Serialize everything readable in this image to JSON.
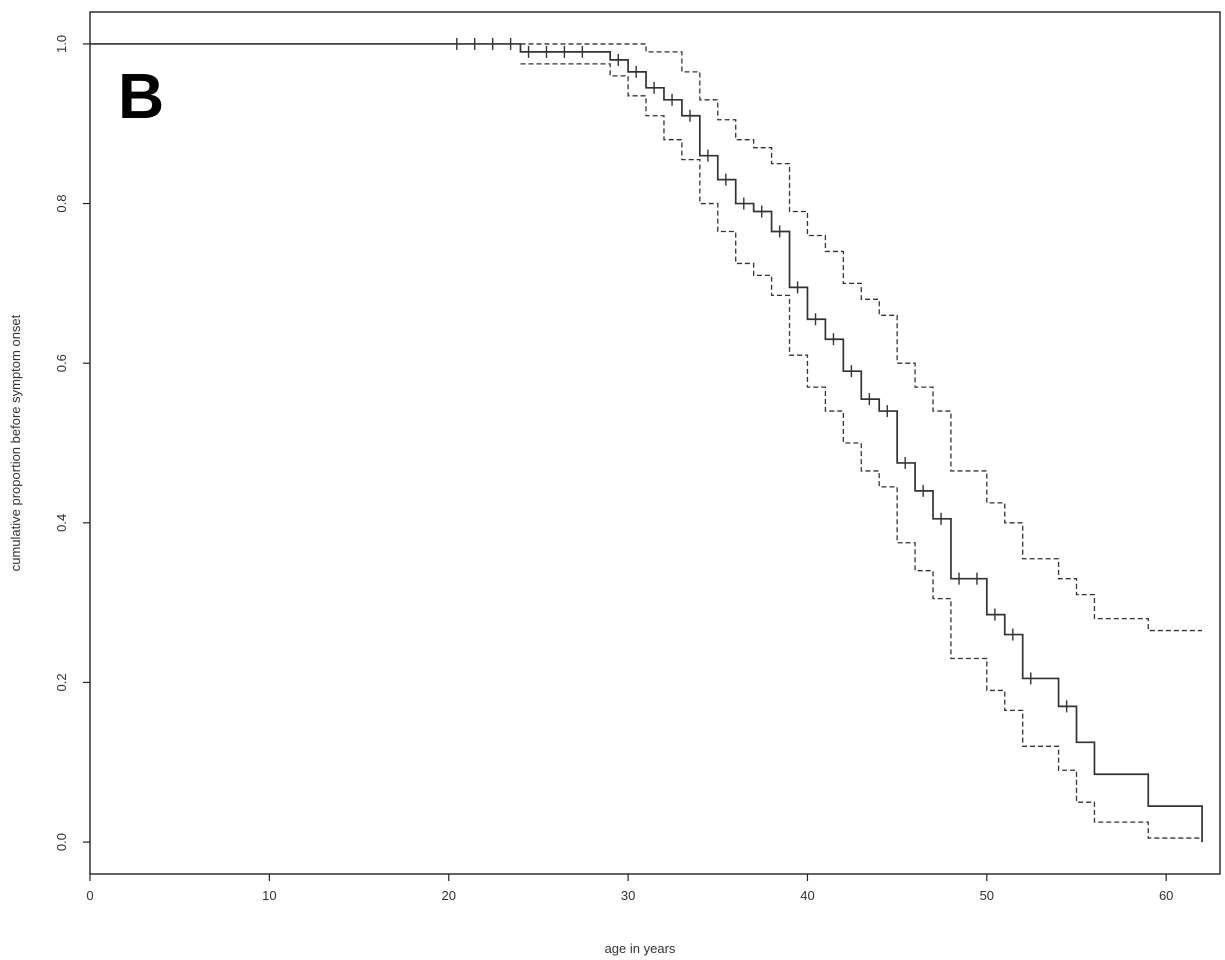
{
  "chart_data": {
    "type": "line",
    "title": "",
    "panel_label": "B",
    "xlabel": "age in years",
    "ylabel": "cumulative proportion before symptom onset",
    "xlim": [
      0,
      63
    ],
    "ylim": [
      -0.04,
      1.04
    ],
    "xticks": [
      0,
      10,
      20,
      30,
      40,
      50,
      60
    ],
    "yticks": [
      0.0,
      0.2,
      0.4,
      0.6,
      0.8,
      1.0
    ],
    "xtick_labels": [
      "0",
      "10",
      "20",
      "30",
      "40",
      "50",
      "60"
    ],
    "ytick_labels": [
      "0.0",
      "0.2",
      "0.4",
      "0.6",
      "0.8",
      "1.0"
    ],
    "grid": false,
    "series": [
      {
        "style": "solid",
        "x": [
          0,
          24,
          29,
          30,
          31,
          32,
          33,
          34,
          35,
          36,
          37,
          38,
          39,
          40,
          41,
          42,
          43,
          44,
          45,
          46,
          47,
          48,
          49,
          50,
          51,
          52,
          54,
          55,
          56,
          59,
          62
        ],
        "y": [
          1.0,
          0.99,
          0.98,
          0.965,
          0.945,
          0.93,
          0.91,
          0.86,
          0.83,
          0.8,
          0.79,
          0.765,
          0.695,
          0.655,
          0.63,
          0.59,
          0.555,
          0.54,
          0.475,
          0.44,
          0.405,
          0.33,
          0.33,
          0.285,
          0.26,
          0.205,
          0.17,
          0.125,
          0.085,
          0.045,
          0.0
        ],
        "censor_x": [
          20,
          21,
          22,
          23,
          24,
          25,
          26,
          27,
          29,
          30,
          31,
          32,
          33,
          34,
          35,
          36,
          37,
          38,
          39,
          40,
          41,
          42,
          43,
          44,
          45,
          46,
          47,
          48,
          49,
          50,
          51,
          52,
          54
        ]
      },
      {
        "style": "dashed",
        "x": [
          24,
          31,
          33,
          34,
          35,
          36,
          37,
          38,
          39,
          40,
          41,
          42,
          43,
          44,
          45,
          46,
          47,
          48,
          50,
          51,
          52,
          54,
          55,
          56,
          59,
          62
        ],
        "y": [
          1.0,
          0.99,
          0.965,
          0.93,
          0.905,
          0.88,
          0.87,
          0.85,
          0.79,
          0.76,
          0.74,
          0.7,
          0.68,
          0.66,
          0.6,
          0.57,
          0.54,
          0.465,
          0.425,
          0.4,
          0.355,
          0.33,
          0.31,
          0.28,
          0.265,
          0.265
        ]
      },
      {
        "style": "dashed",
        "x": [
          24,
          29,
          30,
          31,
          32,
          33,
          34,
          35,
          36,
          37,
          38,
          39,
          40,
          41,
          42,
          43,
          44,
          45,
          46,
          47,
          48,
          50,
          51,
          52,
          54,
          55,
          56,
          59,
          62
        ],
        "y": [
          0.975,
          0.96,
          0.935,
          0.91,
          0.88,
          0.855,
          0.8,
          0.765,
          0.725,
          0.71,
          0.685,
          0.61,
          0.57,
          0.54,
          0.5,
          0.465,
          0.445,
          0.375,
          0.34,
          0.305,
          0.23,
          0.19,
          0.165,
          0.12,
          0.09,
          0.05,
          0.025,
          0.005,
          0.005
        ]
      }
    ]
  }
}
